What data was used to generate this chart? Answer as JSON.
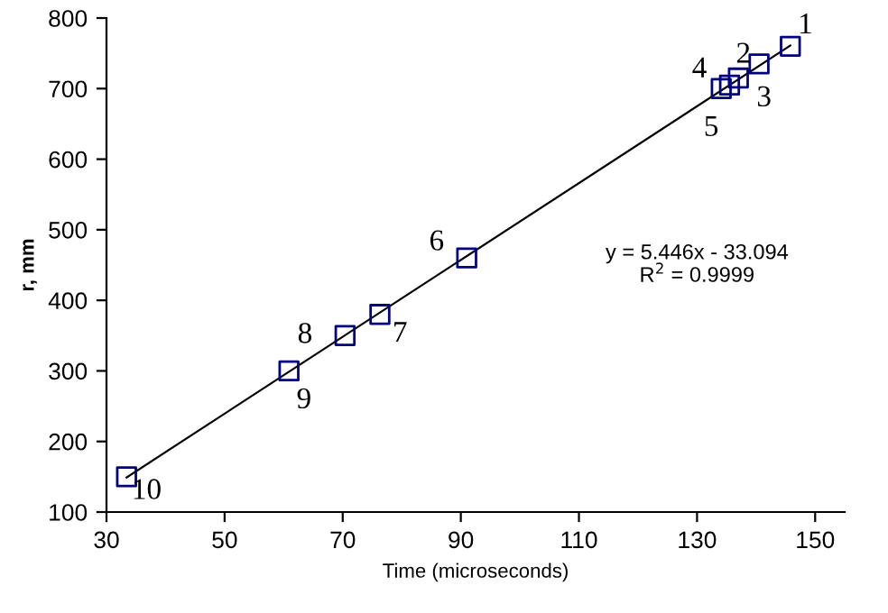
{
  "chart_data": {
    "type": "scatter",
    "xlabel": "Time (microseconds)",
    "ylabel": "r, mm",
    "xlim": [
      30,
      155
    ],
    "ylim": [
      100,
      800
    ],
    "xticks": [
      30,
      50,
      70,
      90,
      110,
      130,
      150
    ],
    "yticks": [
      100,
      200,
      300,
      400,
      500,
      600,
      700,
      800
    ],
    "grid": false,
    "legend": false,
    "marker": "square",
    "series": [
      {
        "color": "#000080",
        "x": [
          145.8,
          137,
          140.5,
          135.5,
          134.1,
          91,
          76.3,
          70.4,
          60.9,
          33.4
        ],
        "values": [
          760,
          715,
          735,
          705,
          700,
          460,
          380,
          350,
          300,
          150
        ]
      },
      {
        "type": "line",
        "marker": "none",
        "color": "#000000",
        "x": [
          33.4,
          145.8
        ],
        "values": [
          149,
          761
        ]
      }
    ],
    "annotations": [
      {
        "text": "1",
        "x": 145.8,
        "y": 760
      },
      {
        "text": "2",
        "x": 137,
        "y": 715
      },
      {
        "text": "3",
        "x": 140.5,
        "y": 735
      },
      {
        "text": "4",
        "x": 135.5,
        "y": 705
      },
      {
        "text": "5",
        "x": 134.1,
        "y": 700
      },
      {
        "text": "6",
        "x": 91,
        "y": 460
      },
      {
        "text": "7",
        "x": 76.3,
        "y": 380
      },
      {
        "text": "8",
        "x": 70.4,
        "y": 350
      },
      {
        "text": "9",
        "x": 60.9,
        "y": 300
      },
      {
        "text": "10",
        "x": 33.4,
        "y": 150
      },
      "y = 5.446x - 33.094\nR$^{2}$ = 0.9999"
    ]
  }
}
